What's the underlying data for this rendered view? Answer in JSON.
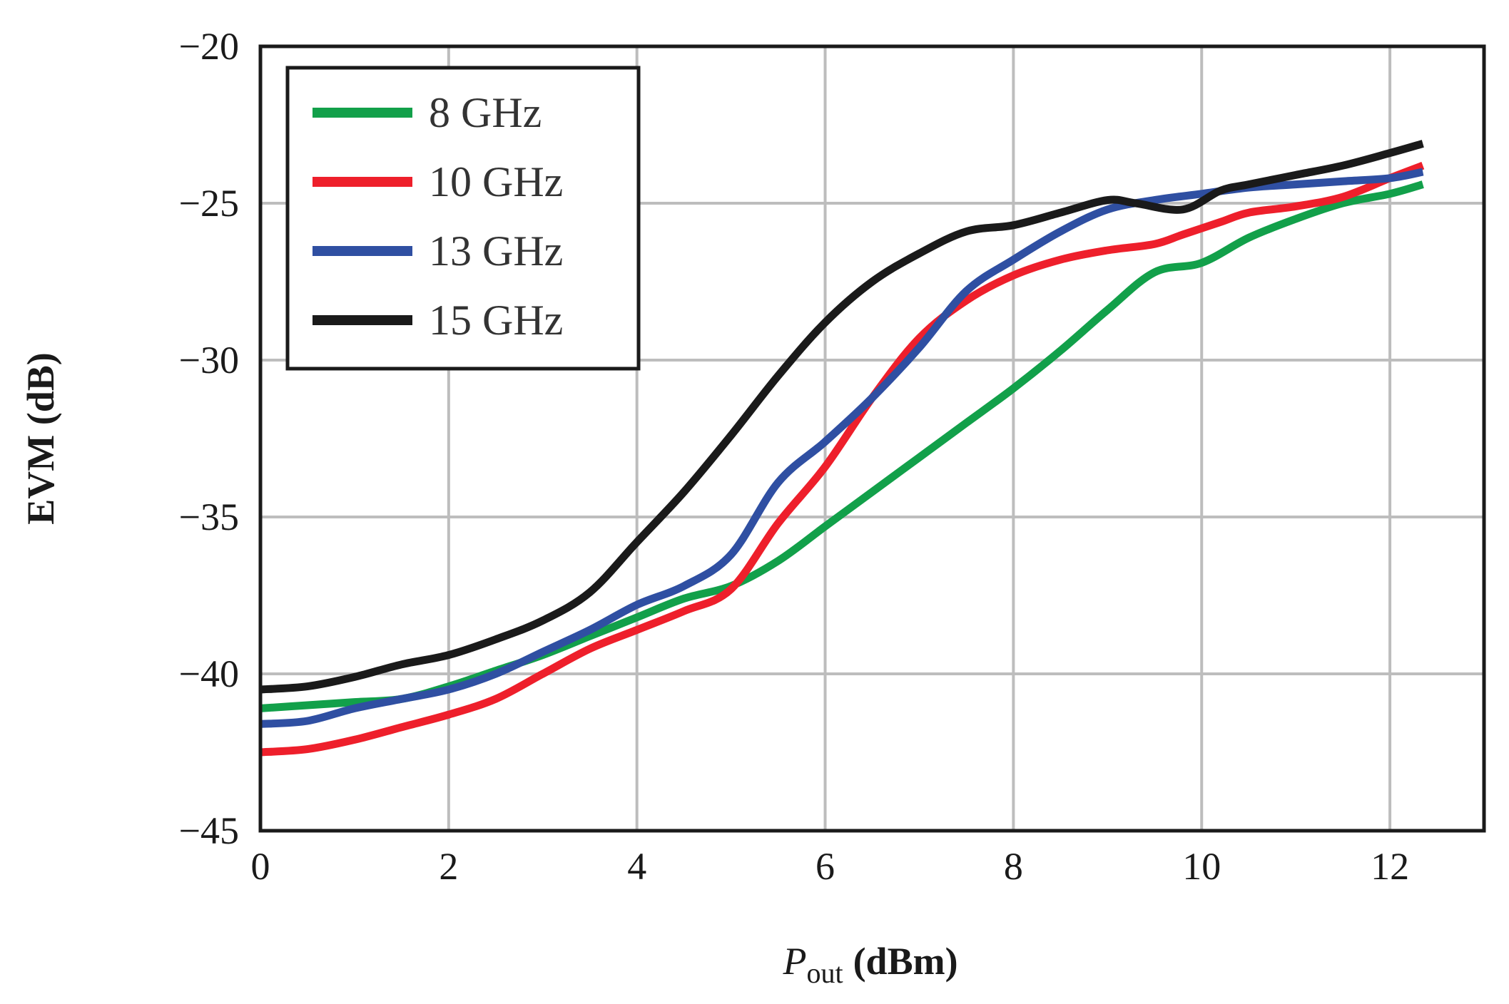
{
  "chart_data": {
    "type": "line",
    "xlabel": {
      "symbol": "P",
      "subscript": "out",
      "unit": "(dBm)"
    },
    "ylabel": "EVM (dB)",
    "xlim": [
      0,
      13
    ],
    "ylim": [
      -45,
      -20
    ],
    "xticks": [
      0,
      2,
      4,
      6,
      8,
      10,
      12
    ],
    "yticks": [
      -45,
      -40,
      -35,
      -30,
      -25,
      -20
    ],
    "ytick_labels": [
      "−45",
      "−40",
      "−35",
      "−30",
      "−25",
      "−20"
    ],
    "grid": true,
    "legend_position": "top-left",
    "series": [
      {
        "name": "8 GHz",
        "color": "#12a04a",
        "x": [
          0,
          0.5,
          1,
          1.5,
          2,
          2.5,
          3,
          3.5,
          4,
          4.5,
          5,
          5.5,
          6,
          6.5,
          7,
          7.5,
          8,
          8.5,
          9,
          9.5,
          10,
          10.5,
          11,
          11.5,
          12,
          12.35
        ],
        "y": [
          -41.1,
          -41.0,
          -40.9,
          -40.8,
          -40.4,
          -39.9,
          -39.4,
          -38.8,
          -38.2,
          -37.6,
          -37.2,
          -36.4,
          -35.3,
          -34.2,
          -33.1,
          -32.0,
          -30.9,
          -29.7,
          -28.4,
          -27.2,
          -26.9,
          -26.1,
          -25.5,
          -25.0,
          -24.7,
          -24.4
        ]
      },
      {
        "name": "10 GHz",
        "color": "#ee1f2b",
        "x": [
          0,
          0.5,
          1,
          1.5,
          2,
          2.5,
          3,
          3.5,
          4,
          4.5,
          5,
          5.5,
          6,
          6.5,
          7,
          7.5,
          8,
          8.5,
          9,
          9.5,
          9.8,
          10.2,
          10.5,
          11,
          11.5,
          12,
          12.35
        ],
        "y": [
          -42.5,
          -42.4,
          -42.1,
          -41.7,
          -41.3,
          -40.8,
          -40.0,
          -39.2,
          -38.6,
          -38.0,
          -37.3,
          -35.2,
          -33.4,
          -31.2,
          -29.3,
          -28.1,
          -27.3,
          -26.8,
          -26.5,
          -26.3,
          -26.0,
          -25.6,
          -25.3,
          -25.1,
          -24.8,
          -24.2,
          -23.8
        ]
      },
      {
        "name": "13 GHz",
        "color": "#2f4fa2",
        "x": [
          0,
          0.5,
          1,
          1.5,
          2,
          2.5,
          3,
          3.5,
          4,
          4.5,
          5,
          5.5,
          6,
          6.5,
          7,
          7.5,
          8,
          8.5,
          9,
          9.5,
          10,
          10.5,
          11,
          11.5,
          12,
          12.35
        ],
        "y": [
          -41.6,
          -41.5,
          -41.1,
          -40.8,
          -40.5,
          -40.0,
          -39.3,
          -38.6,
          -37.8,
          -37.2,
          -36.2,
          -33.9,
          -32.6,
          -31.2,
          -29.6,
          -27.8,
          -26.8,
          -25.9,
          -25.2,
          -24.9,
          -24.7,
          -24.5,
          -24.4,
          -24.3,
          -24.2,
          -24.0
        ]
      },
      {
        "name": "15 GHz",
        "color": "#1a1a1a",
        "x": [
          0,
          0.5,
          1,
          1.5,
          2,
          2.5,
          3,
          3.5,
          4,
          4.5,
          5,
          5.5,
          6,
          6.5,
          7,
          7.5,
          8,
          8.5,
          9,
          9.3,
          9.8,
          10.2,
          10.5,
          11,
          11.5,
          12,
          12.35
        ],
        "y": [
          -40.5,
          -40.4,
          -40.1,
          -39.7,
          -39.4,
          -38.9,
          -38.3,
          -37.4,
          -35.8,
          -34.2,
          -32.4,
          -30.5,
          -28.8,
          -27.5,
          -26.6,
          -25.9,
          -25.7,
          -25.3,
          -24.9,
          -25.0,
          -25.2,
          -24.6,
          -24.4,
          -24.1,
          -23.8,
          -23.4,
          -23.1
        ]
      }
    ]
  }
}
